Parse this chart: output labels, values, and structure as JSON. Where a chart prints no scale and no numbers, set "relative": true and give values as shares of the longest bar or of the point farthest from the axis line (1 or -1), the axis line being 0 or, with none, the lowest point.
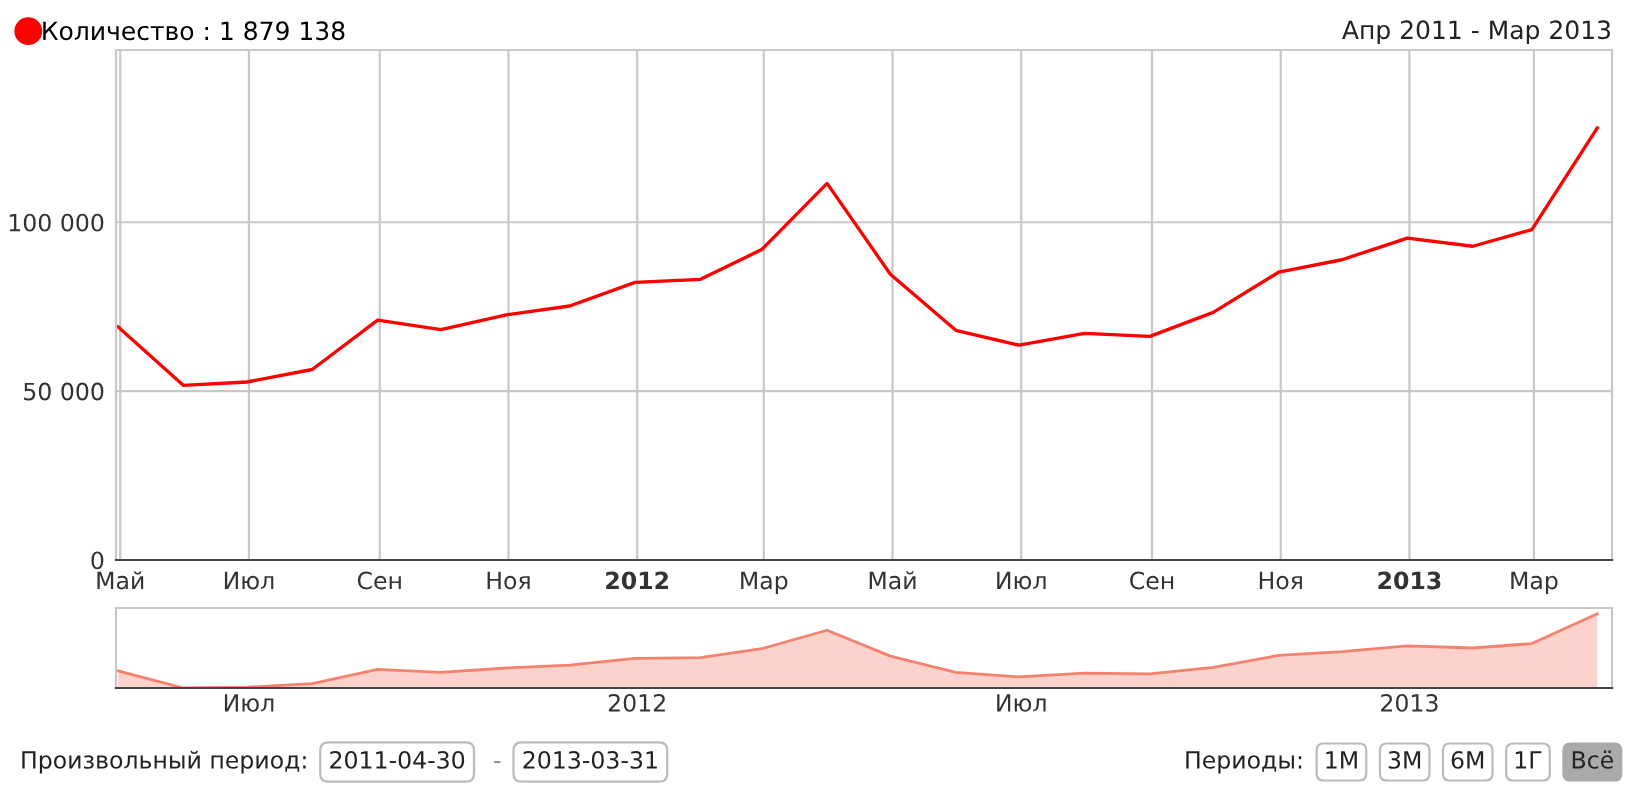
{
  "chart_data": [
    {
      "type": "line",
      "title": "Апр 2011 - Мар 2013",
      "legend": "top left",
      "grid": true,
      "marker": "none",
      "line_style": "solid",
      "x": [
        "2011-04-30",
        "2011-05-31",
        "2011-06-30",
        "2011-07-31",
        "2011-08-31",
        "2011-09-30",
        "2011-10-31",
        "2011-11-30",
        "2011-12-31",
        "2012-01-31",
        "2012-02-29",
        "2012-03-31",
        "2012-04-30",
        "2012-05-31",
        "2012-06-30",
        "2012-07-31",
        "2012-08-31",
        "2012-09-30",
        "2012-10-31",
        "2012-11-30",
        "2012-12-31",
        "2013-01-31",
        "2013-02-28",
        "2013-03-31"
      ],
      "series": [
        {
          "name": "Количество : 1 879 138",
          "color": "#ff0000",
          "values": [
            69000,
            51700,
            52700,
            56400,
            71000,
            68200,
            72600,
            75200,
            82200,
            83100,
            91900,
            111500,
            84600,
            68000,
            63600,
            67100,
            66200,
            73300,
            85200,
            88900,
            95300,
            92900,
            97800,
            127900
          ]
        }
      ],
      "xlim": [
        "2011-04-29",
        "2013-04-07"
      ],
      "ylim": [
        0,
        151000
      ],
      "xticks": [
        {
          "value": "2011-05-01",
          "label": "Май"
        },
        {
          "value": "2011-07-01",
          "label": "Июл"
        },
        {
          "value": "2011-09-01",
          "label": "Сен"
        },
        {
          "value": "2011-11-01",
          "label": "Ноя"
        },
        {
          "value": "2012-01-01",
          "label": "2012"
        },
        {
          "value": "2012-03-01",
          "label": "Мар"
        },
        {
          "value": "2012-05-01",
          "label": "Май"
        },
        {
          "value": "2012-07-01",
          "label": "Июл"
        },
        {
          "value": "2012-09-01",
          "label": "Сен"
        },
        {
          "value": "2012-11-01",
          "label": "Ноя"
        },
        {
          "value": "2013-01-01",
          "label": "2013"
        },
        {
          "value": "2013-03-01",
          "label": "Мар"
        }
      ],
      "yticks": [
        0,
        {
          "value": 50000,
          "label": "50 000"
        },
        {
          "value": 100000,
          "label": "100 000"
        }
      ]
    },
    {
      "type": "area",
      "relative": true,
      "grid": false,
      "x": [
        "2011-04-30",
        "2011-05-31",
        "2011-06-30",
        "2011-07-31",
        "2011-08-31",
        "2011-09-30",
        "2011-10-31",
        "2011-11-30",
        "2011-12-31",
        "2012-01-31",
        "2012-02-29",
        "2012-03-31",
        "2012-04-30",
        "2012-05-31",
        "2012-06-30",
        "2012-07-31",
        "2012-08-31",
        "2012-09-30",
        "2012-10-31",
        "2012-11-30",
        "2012-12-31",
        "2013-01-31",
        "2013-02-28",
        "2013-03-31"
      ],
      "series": [
        {
          "color": "#f4826e",
          "values": [
            0.23,
            0,
            0.01,
            0.06,
            0.25,
            0.21,
            0.27,
            0.31,
            0.4,
            0.41,
            0.53,
            0.78,
            0.43,
            0.21,
            0.15,
            0.2,
            0.19,
            0.28,
            0.44,
            0.49,
            0.57,
            0.54,
            0.6,
            1
          ]
        }
      ],
      "xlim": [
        "2011-04-29",
        "2013-04-07"
      ],
      "xticks": [
        {
          "value": "2011-07-01",
          "label": "Июл"
        },
        {
          "value": "2012-01-01",
          "label": "2012"
        },
        {
          "value": "2012-07-01",
          "label": "Июл"
        },
        {
          "value": "2013-01-01",
          "label": "2013"
        }
      ],
      "annotations": [
        "Произвольный период:",
        "2011-04-30",
        "-",
        "2013-03-31",
        "Периоды:",
        "1М",
        "3М",
        "6М",
        "1Г",
        "Всё"
      ]
    }
  ]
}
